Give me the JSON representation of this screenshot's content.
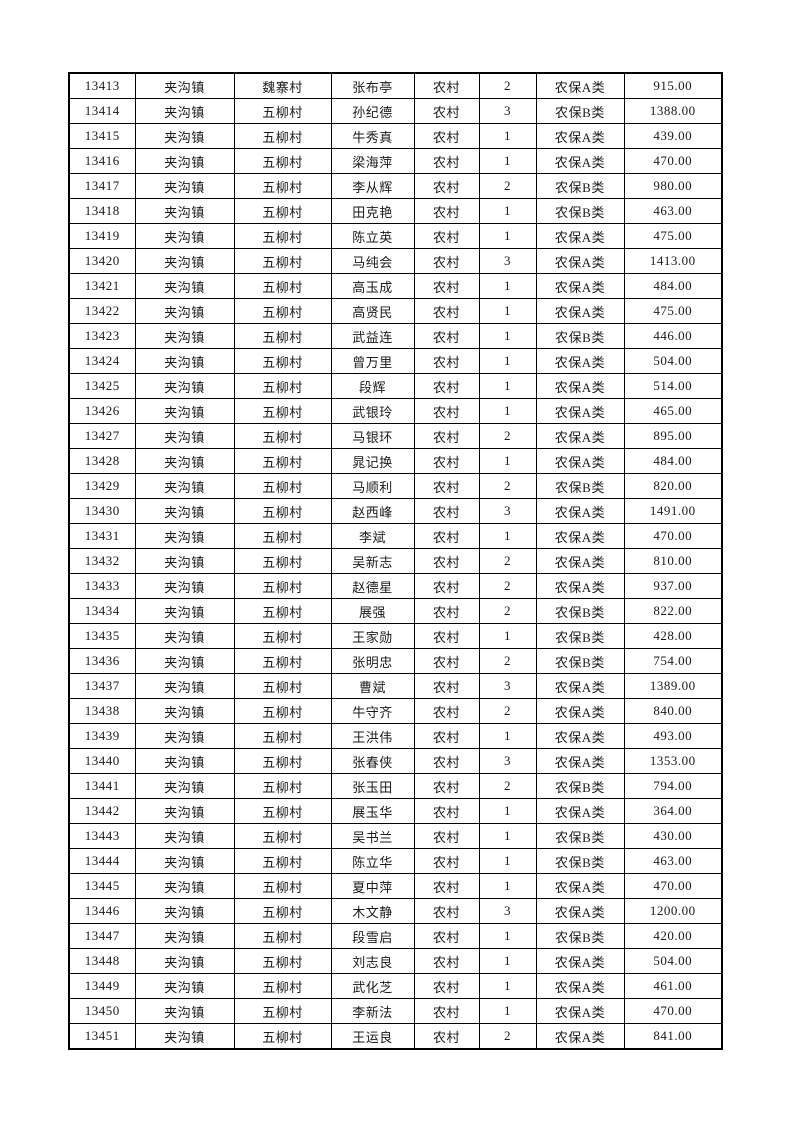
{
  "document": {
    "background_color": "#ffffff",
    "text_color": "#1a1a1a",
    "border_color": "#000000"
  },
  "table": {
    "rows": [
      [
        "13413",
        "夹沟镇",
        "魏寨村",
        "张布亭",
        "农村",
        "2",
        "农保A类",
        "915.00"
      ],
      [
        "13414",
        "夹沟镇",
        "五柳村",
        "孙纪德",
        "农村",
        "3",
        "农保B类",
        "1388.00"
      ],
      [
        "13415",
        "夹沟镇",
        "五柳村",
        "牛秀真",
        "农村",
        "1",
        "农保A类",
        "439.00"
      ],
      [
        "13416",
        "夹沟镇",
        "五柳村",
        "梁海萍",
        "农村",
        "1",
        "农保A类",
        "470.00"
      ],
      [
        "13417",
        "夹沟镇",
        "五柳村",
        "李从辉",
        "农村",
        "2",
        "农保B类",
        "980.00"
      ],
      [
        "13418",
        "夹沟镇",
        "五柳村",
        "田克艳",
        "农村",
        "1",
        "农保B类",
        "463.00"
      ],
      [
        "13419",
        "夹沟镇",
        "五柳村",
        "陈立英",
        "农村",
        "1",
        "农保A类",
        "475.00"
      ],
      [
        "13420",
        "夹沟镇",
        "五柳村",
        "马纯会",
        "农村",
        "3",
        "农保A类",
        "1413.00"
      ],
      [
        "13421",
        "夹沟镇",
        "五柳村",
        "高玉成",
        "农村",
        "1",
        "农保A类",
        "484.00"
      ],
      [
        "13422",
        "夹沟镇",
        "五柳村",
        "高贤民",
        "农村",
        "1",
        "农保A类",
        "475.00"
      ],
      [
        "13423",
        "夹沟镇",
        "五柳村",
        "武益连",
        "农村",
        "1",
        "农保B类",
        "446.00"
      ],
      [
        "13424",
        "夹沟镇",
        "五柳村",
        "曾万里",
        "农村",
        "1",
        "农保A类",
        "504.00"
      ],
      [
        "13425",
        "夹沟镇",
        "五柳村",
        "段辉",
        "农村",
        "1",
        "农保A类",
        "514.00"
      ],
      [
        "13426",
        "夹沟镇",
        "五柳村",
        "武银玲",
        "农村",
        "1",
        "农保A类",
        "465.00"
      ],
      [
        "13427",
        "夹沟镇",
        "五柳村",
        "马银环",
        "农村",
        "2",
        "农保A类",
        "895.00"
      ],
      [
        "13428",
        "夹沟镇",
        "五柳村",
        "晁记换",
        "农村",
        "1",
        "农保A类",
        "484.00"
      ],
      [
        "13429",
        "夹沟镇",
        "五柳村",
        "马顺利",
        "农村",
        "2",
        "农保B类",
        "820.00"
      ],
      [
        "13430",
        "夹沟镇",
        "五柳村",
        "赵西峰",
        "农村",
        "3",
        "农保A类",
        "1491.00"
      ],
      [
        "13431",
        "夹沟镇",
        "五柳村",
        "李斌",
        "农村",
        "1",
        "农保A类",
        "470.00"
      ],
      [
        "13432",
        "夹沟镇",
        "五柳村",
        "吴新志",
        "农村",
        "2",
        "农保A类",
        "810.00"
      ],
      [
        "13433",
        "夹沟镇",
        "五柳村",
        "赵德星",
        "农村",
        "2",
        "农保A类",
        "937.00"
      ],
      [
        "13434",
        "夹沟镇",
        "五柳村",
        "展强",
        "农村",
        "2",
        "农保B类",
        "822.00"
      ],
      [
        "13435",
        "夹沟镇",
        "五柳村",
        "王家勋",
        "农村",
        "1",
        "农保B类",
        "428.00"
      ],
      [
        "13436",
        "夹沟镇",
        "五柳村",
        "张明忠",
        "农村",
        "2",
        "农保B类",
        "754.00"
      ],
      [
        "13437",
        "夹沟镇",
        "五柳村",
        "曹斌",
        "农村",
        "3",
        "农保A类",
        "1389.00"
      ],
      [
        "13438",
        "夹沟镇",
        "五柳村",
        "牛守齐",
        "农村",
        "2",
        "农保A类",
        "840.00"
      ],
      [
        "13439",
        "夹沟镇",
        "五柳村",
        "王洪伟",
        "农村",
        "1",
        "农保A类",
        "493.00"
      ],
      [
        "13440",
        "夹沟镇",
        "五柳村",
        "张春侠",
        "农村",
        "3",
        "农保A类",
        "1353.00"
      ],
      [
        "13441",
        "夹沟镇",
        "五柳村",
        "张玉田",
        "农村",
        "2",
        "农保B类",
        "794.00"
      ],
      [
        "13442",
        "夹沟镇",
        "五柳村",
        "展玉华",
        "农村",
        "1",
        "农保A类",
        "364.00"
      ],
      [
        "13443",
        "夹沟镇",
        "五柳村",
        "吴书兰",
        "农村",
        "1",
        "农保B类",
        "430.00"
      ],
      [
        "13444",
        "夹沟镇",
        "五柳村",
        "陈立华",
        "农村",
        "1",
        "农保B类",
        "463.00"
      ],
      [
        "13445",
        "夹沟镇",
        "五柳村",
        "夏中萍",
        "农村",
        "1",
        "农保A类",
        "470.00"
      ],
      [
        "13446",
        "夹沟镇",
        "五柳村",
        "木文静",
        "农村",
        "3",
        "农保A类",
        "1200.00"
      ],
      [
        "13447",
        "夹沟镇",
        "五柳村",
        "段雪启",
        "农村",
        "1",
        "农保B类",
        "420.00"
      ],
      [
        "13448",
        "夹沟镇",
        "五柳村",
        "刘志良",
        "农村",
        "1",
        "农保A类",
        "504.00"
      ],
      [
        "13449",
        "夹沟镇",
        "五柳村",
        "武化芝",
        "农村",
        "1",
        "农保A类",
        "461.00"
      ],
      [
        "13450",
        "夹沟镇",
        "五柳村",
        "李新法",
        "农村",
        "1",
        "农保A类",
        "470.00"
      ],
      [
        "13451",
        "夹沟镇",
        "五柳村",
        "王运良",
        "农村",
        "2",
        "农保A类",
        "841.00"
      ]
    ]
  }
}
